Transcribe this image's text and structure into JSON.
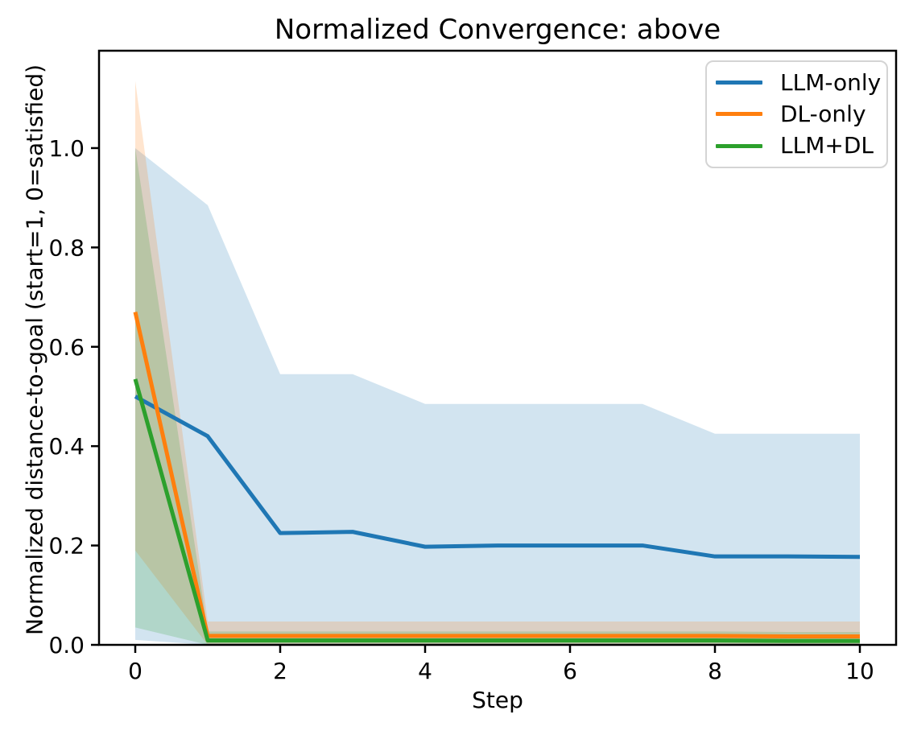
{
  "chart_data": {
    "type": "line",
    "title": "Normalized Convergence: above",
    "xlabel": "Step",
    "ylabel": "Normalized distance-to-goal (start=1, 0=satisfied)",
    "x": [
      0,
      1,
      2,
      3,
      4,
      5,
      6,
      7,
      8,
      9,
      10
    ],
    "xlim": [
      -0.5,
      10.5
    ],
    "ylim": [
      0,
      1.196
    ],
    "grid": false,
    "legend_position": "upper right",
    "band_alpha": 0.2,
    "xticks": [
      {
        "v": 0,
        "label": "0"
      },
      {
        "v": 2,
        "label": "2"
      },
      {
        "v": 4,
        "label": "4"
      },
      {
        "v": 6,
        "label": "6"
      },
      {
        "v": 8,
        "label": "8"
      },
      {
        "v": 10,
        "label": "10"
      }
    ],
    "yticks": [
      {
        "v": 0.0,
        "label": "0.0"
      },
      {
        "v": 0.2,
        "label": "0.2"
      },
      {
        "v": 0.4,
        "label": "0.4"
      },
      {
        "v": 0.6,
        "label": "0.6"
      },
      {
        "v": 0.8,
        "label": "0.8"
      },
      {
        "v": 1.0,
        "label": "1.0"
      }
    ],
    "series": [
      {
        "name": "LLM-only",
        "color": "#1f77b4",
        "values": [
          0.5,
          0.42,
          0.225,
          0.2275,
          0.1975,
          0.2,
          0.2,
          0.2,
          0.178,
          0.178,
          0.177
        ],
        "band_upper": [
          1.0,
          0.885,
          0.545,
          0.545,
          0.485,
          0.485,
          0.485,
          0.485,
          0.425,
          0.425,
          0.425
        ],
        "band_lower": [
          0.01,
          0.0,
          0.0,
          0.0,
          0.0,
          0.0,
          0.0,
          0.0,
          0.0,
          0.0,
          0.0
        ]
      },
      {
        "name": "DL-only",
        "color": "#ff7f0e",
        "values": [
          0.67,
          0.018,
          0.018,
          0.018,
          0.018,
          0.018,
          0.018,
          0.018,
          0.018,
          0.017,
          0.017
        ],
        "band_upper": [
          1.135,
          0.047,
          0.047,
          0.047,
          0.047,
          0.047,
          0.047,
          0.047,
          0.047,
          0.047,
          0.047
        ],
        "band_lower": [
          0.19,
          0.0,
          0.0,
          0.0,
          0.0,
          0.0,
          0.0,
          0.0,
          0.0,
          0.0,
          0.0
        ]
      },
      {
        "name": "LLM+DL",
        "color": "#2ca02c",
        "values": [
          0.535,
          0.009,
          0.009,
          0.009,
          0.009,
          0.009,
          0.009,
          0.009,
          0.009,
          0.008,
          0.008
        ],
        "band_upper": [
          1.0,
          0.027,
          0.027,
          0.027,
          0.027,
          0.027,
          0.027,
          0.027,
          0.027,
          0.026,
          0.026
        ],
        "band_lower": [
          0.035,
          0.0,
          0.0,
          0.0,
          0.0,
          0.0,
          0.0,
          0.0,
          0.0,
          0.0,
          0.0
        ]
      }
    ]
  }
}
